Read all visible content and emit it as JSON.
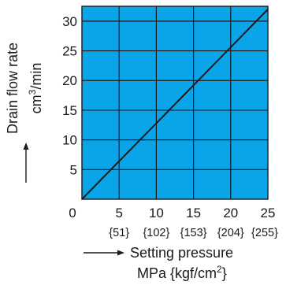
{
  "chart_data": {
    "type": "line",
    "title": "",
    "xlabel": "Setting pressure",
    "xlabel_units": "MPa {kgf/cm",
    "xlabel_units_sup": "2",
    "xlabel_units_close": "}",
    "ylabel": "Drain flow rate",
    "ylabel_units": "cm",
    "ylabel_units_sup": "3",
    "ylabel_units_rest": "/min",
    "xlim": [
      0,
      25
    ],
    "ylim": [
      0,
      32.5
    ],
    "x_ticks": [
      "0",
      "5",
      "10",
      "15",
      "20",
      "25"
    ],
    "x_ticks_alt": [
      "{51}",
      "{102}",
      "{153}",
      "{204}",
      "{255}"
    ],
    "y_ticks": [
      "5",
      "10",
      "15",
      "20",
      "25",
      "30"
    ],
    "grid": true,
    "plot_background": "#0aa4e9",
    "line_color": "#1a1a1a",
    "series": [
      {
        "x": [
          0,
          25
        ],
        "y": [
          0,
          32
        ]
      }
    ]
  }
}
